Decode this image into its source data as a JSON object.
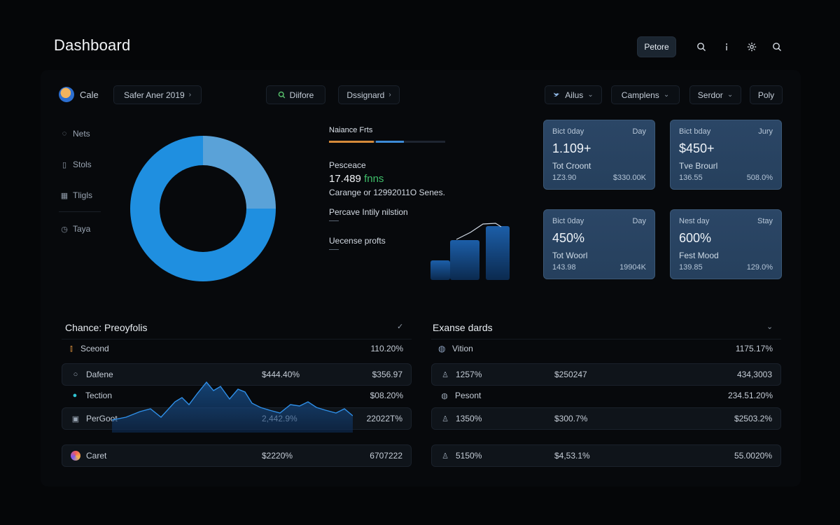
{
  "header": {
    "title": "Dashboard",
    "primary_button": "Petore",
    "icons": [
      "search-icon",
      "info-icon",
      "settings-icon",
      "search-icon"
    ]
  },
  "filters": {
    "user_name": "Cale",
    "date_range": "Safer Aner 2019",
    "search_chip": "Diifore",
    "dashboard_chip": "Dssignard",
    "alias_chip": "Ailus",
    "campaigns_chip": "Camplens",
    "sender_chip": "Serdor",
    "policy_chip": "Poly"
  },
  "sidebar": {
    "items": [
      {
        "label": "Nets",
        "icon": "globe-icon"
      },
      {
        "label": "Stols",
        "icon": "document-icon"
      },
      {
        "label": "Tligls",
        "icon": "grid-icon"
      },
      {
        "label": "Taya",
        "icon": "clock-icon"
      }
    ]
  },
  "donut": {
    "segments": [
      {
        "value": 25,
        "color": "#5aa2d8"
      },
      {
        "value": 75,
        "color": "#1f8fe0"
      }
    ]
  },
  "metrics": {
    "title": "Naiance Frts",
    "label1": "Pesceace",
    "value": "17.489",
    "value_unit": "fnns",
    "desc": "Carange or 12992011O Senes.",
    "label2": "Percave Intily nilstion",
    "label3": "Uecense profts"
  },
  "kpis": [
    {
      "head_left": "Bict 0day",
      "head_right": "Day",
      "value": "1.109+",
      "label": "Tot Croont",
      "foot_left": "1Z3.90",
      "foot_right": "$330.00K"
    },
    {
      "head_left": "Bict bday",
      "head_right": "Jury",
      "value": "$450+",
      "label": "Tve Brourl",
      "foot_left": "136.55",
      "foot_right": "508.0%"
    },
    {
      "head_left": "Bict 0day",
      "head_right": "Day",
      "value": "450%",
      "label": "Tot Woorl",
      "foot_left": "143.98",
      "foot_right": "19904K"
    },
    {
      "head_left": "Nest day",
      "head_right": "Stay",
      "value": "600%",
      "label": "Fest Mood",
      "foot_left": "139.85",
      "foot_right": "129.0%"
    }
  ],
  "left_card": {
    "title": "Chance: Preoyfolis",
    "header_left": "Sceond",
    "header_right": "110.20%",
    "rows": [
      {
        "label": "Dafene",
        "mid": "$444.40%",
        "right": "$356.97"
      },
      {
        "label": "Tection",
        "mid": "",
        "right": "$08.20%"
      },
      {
        "label": "PerGoot",
        "mid": "2,442.9%",
        "right": "22022T%"
      },
      {
        "label": "Caret",
        "mid": "$2220%",
        "right": "6707222"
      }
    ]
  },
  "right_card": {
    "title": "Exanse dards",
    "header_left": "Vition",
    "header_right": "1175.17%",
    "rows": [
      {
        "label": "1257%",
        "mid": "$250247",
        "right": "434,3003"
      },
      {
        "label": "Pesont",
        "mid": "",
        "right": "234.51.20%"
      },
      {
        "label": "1350%",
        "mid": "$300.7%",
        "right": "$2503.2%"
      },
      {
        "label": "5150%",
        "mid": "$4,53.1%",
        "right": "55.0020%"
      }
    ]
  },
  "colors": {
    "accent_blue": "#1f8fe0",
    "accent_light": "#5aa2d8",
    "accent_green": "#3fbf6a",
    "accent_orange": "#d58a3a",
    "kpi_bg": "#2b4666"
  }
}
